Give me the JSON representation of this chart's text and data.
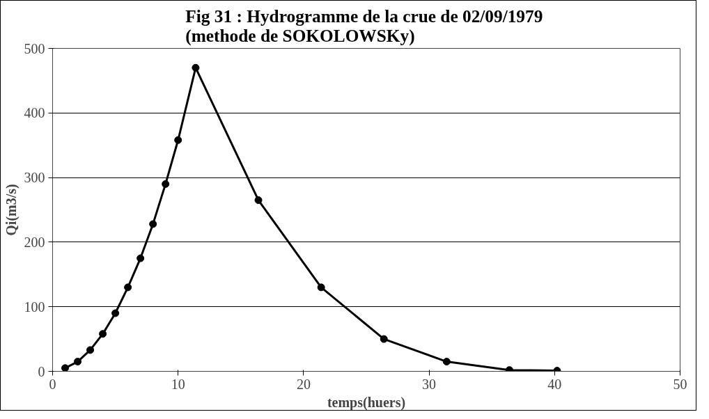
{
  "chart_data": {
    "type": "line",
    "title": "Fig 31  : Hydrogramme de la crue de 02/09/1979\n(methode de SOKOLOWSKy)",
    "xlabel": "temps(huers)",
    "ylabel": "Qi(m3/s)",
    "x": [
      1,
      2,
      3,
      4,
      5,
      6,
      7,
      8,
      9,
      10,
      11.4,
      16.4,
      21.4,
      26.4,
      31.4,
      36.4,
      40.2
    ],
    "series": [
      {
        "color": "#000000",
        "values": [
          5,
          15,
          33,
          58,
          90,
          130,
          175,
          228,
          290,
          358,
          470,
          265,
          130,
          50,
          15,
          2,
          1
        ]
      }
    ],
    "xlim": [
      0,
      50
    ],
    "xticks": [
      0,
      10,
      20,
      30,
      40,
      50
    ],
    "ylim": [
      0,
      500
    ],
    "yticks": [
      0,
      100,
      200,
      300,
      400,
      500
    ],
    "grid": "y",
    "marker": "circle",
    "line_style": "solid"
  }
}
